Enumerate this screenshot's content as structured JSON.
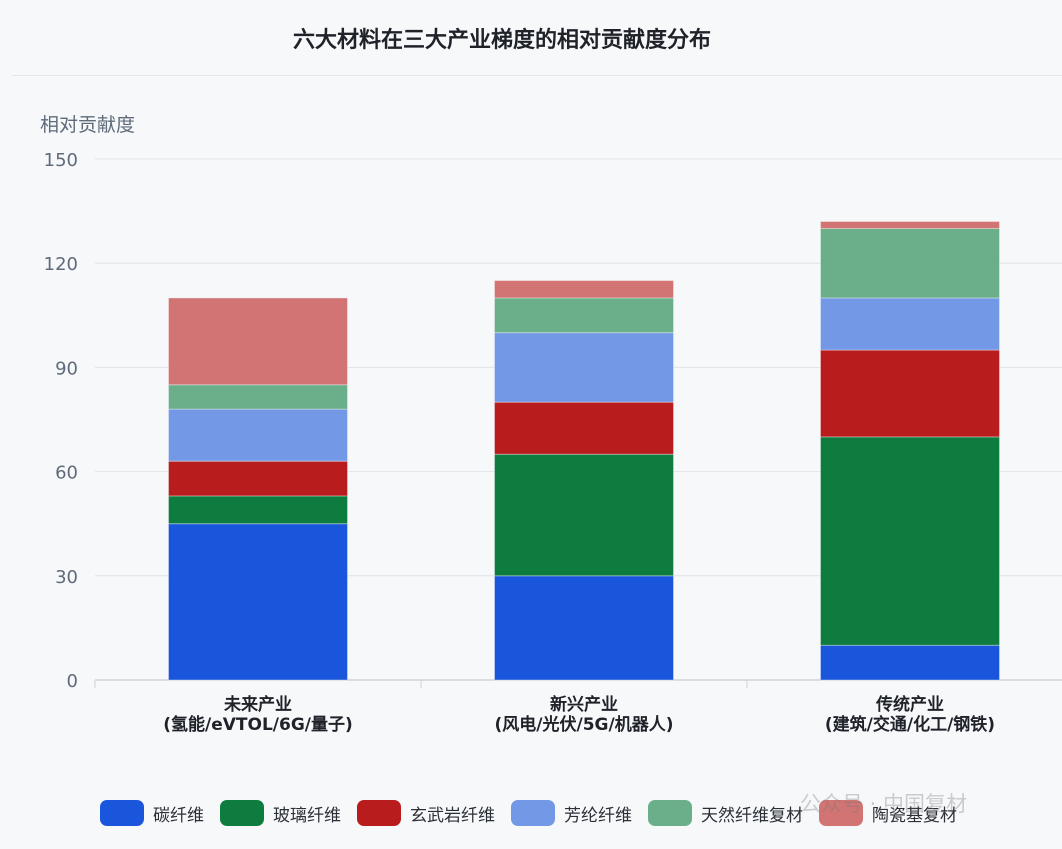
{
  "chart_data": {
    "type": "bar",
    "stacked": true,
    "title": "六大材料在三大产业梯度的相对贡献度分布",
    "ylabel": "相对贡献度",
    "ylim": [
      0,
      150
    ],
    "yticks": [
      0,
      30,
      60,
      90,
      120,
      150
    ],
    "grid": true,
    "legend_position": "bottom",
    "categories": [
      [
        "未来产业",
        "(氢能/eVTOL/6G/量子)"
      ],
      [
        "新兴产业",
        "(风电/光伏/5G/机器人)"
      ],
      [
        "传统产业",
        "(建筑/交通/化工/钢铁)"
      ]
    ],
    "series": [
      {
        "name": "碳纤维",
        "color": "#1a56db",
        "values": [
          45,
          30,
          10
        ]
      },
      {
        "name": "玻璃纤维",
        "color": "#0e7c3f",
        "values": [
          8,
          35,
          60
        ]
      },
      {
        "name": "玄武岩纤维",
        "color": "#b91c1c",
        "values": [
          10,
          15,
          25
        ]
      },
      {
        "name": "芳纶纤维",
        "color": "#7398e6",
        "values": [
          15,
          20,
          15
        ]
      },
      {
        "name": "天然纤维复材",
        "color": "#6aaf89",
        "values": [
          7,
          10,
          20
        ]
      },
      {
        "name": "陶瓷基复材",
        "color": "#d27474",
        "values": [
          25,
          5,
          2
        ]
      }
    ]
  },
  "watermark": "公众号 · 中国复材"
}
